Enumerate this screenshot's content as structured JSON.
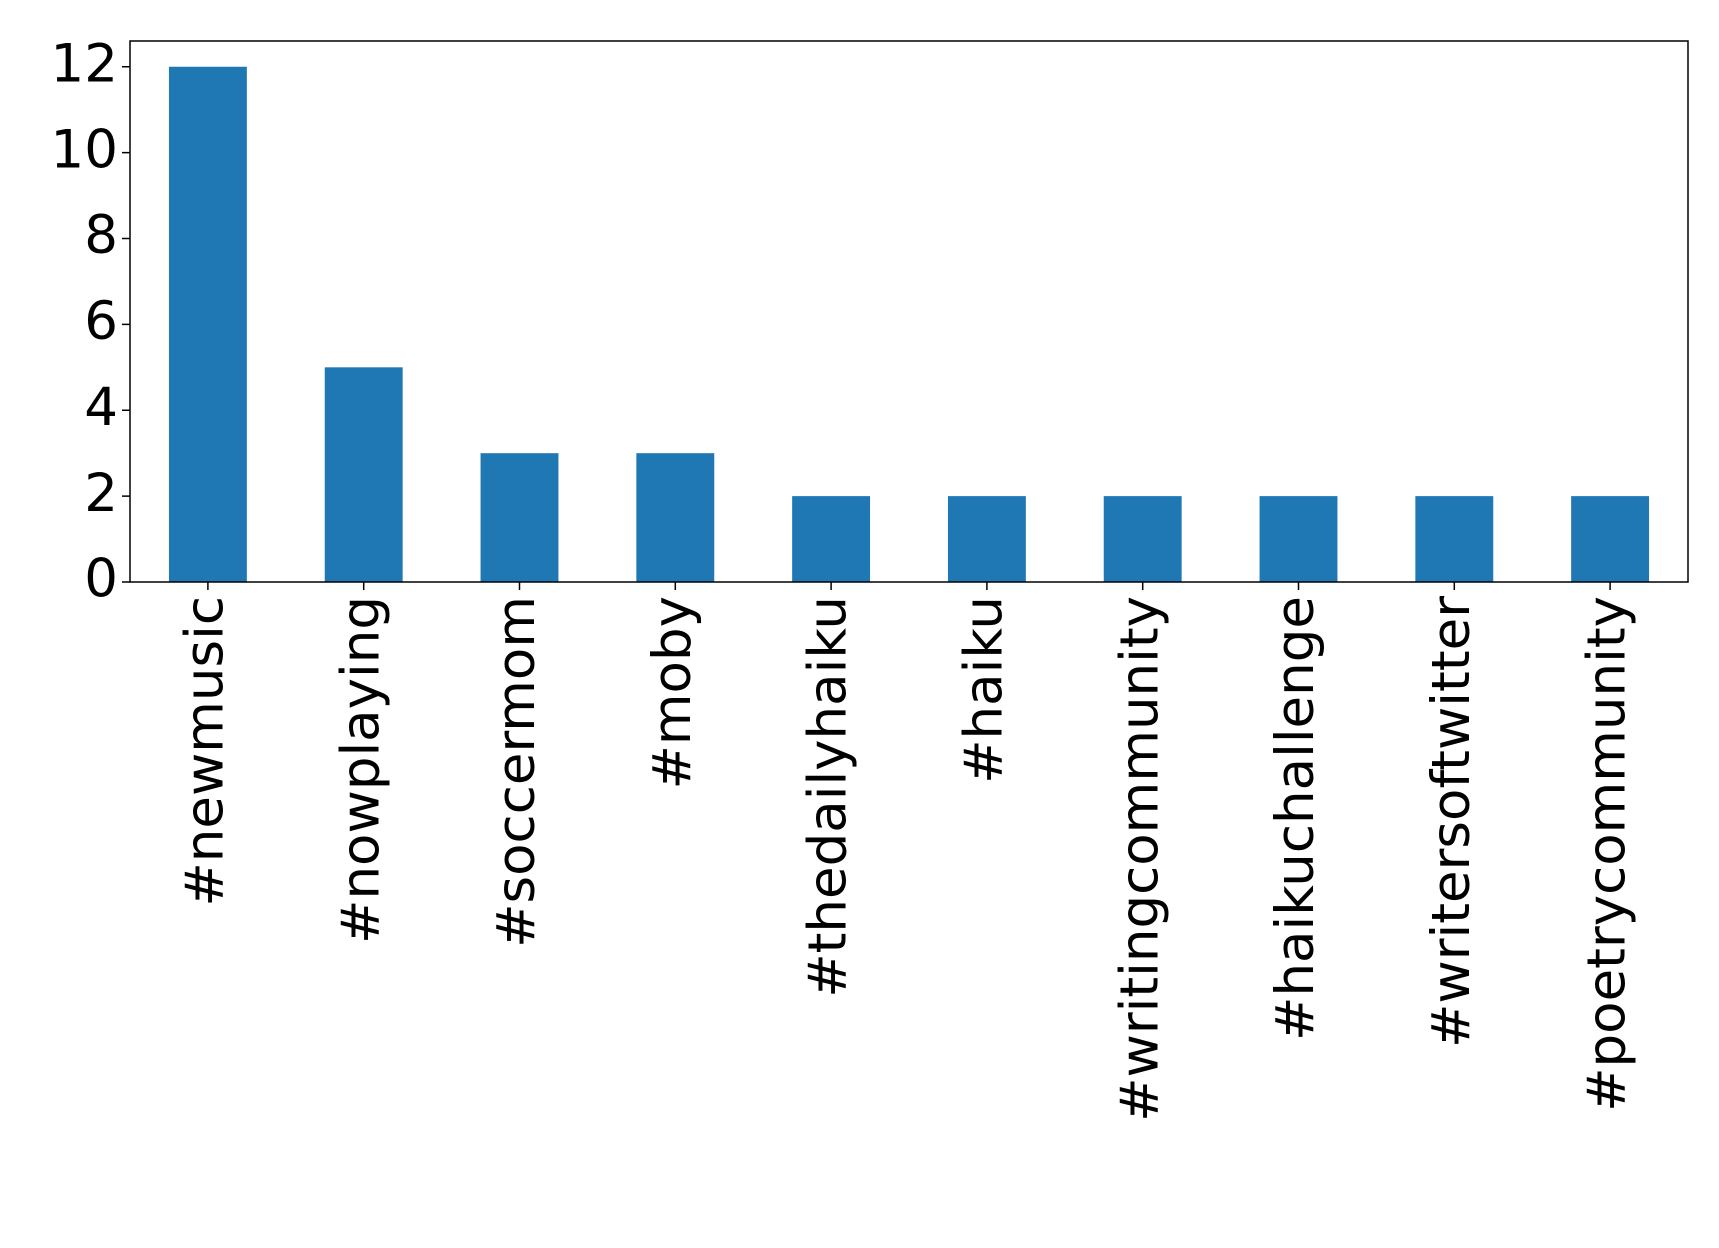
{
  "chart_data": {
    "type": "bar",
    "categories": [
      "#newmusic",
      "#nowplaying",
      "#soccermom",
      "#moby",
      "#thedailyhaiku",
      "#haiku",
      "#writingcommunity",
      "#haikuchallenge",
      "#writersoftwitter",
      "#poetrycommunity"
    ],
    "values": [
      12,
      5,
      3,
      3,
      2,
      2,
      2,
      2,
      2,
      2
    ],
    "color": "#1f77b4",
    "ylim": [
      0,
      12.6
    ],
    "yticks": [
      0,
      2,
      4,
      6,
      8,
      10,
      12
    ],
    "grid": false
  }
}
